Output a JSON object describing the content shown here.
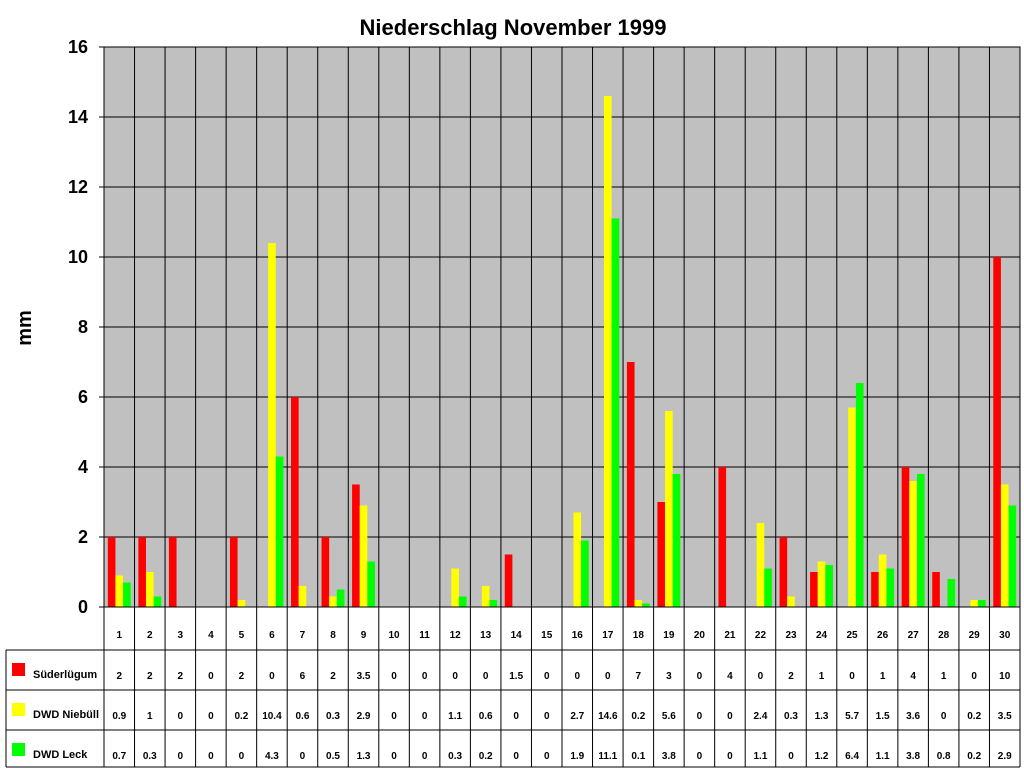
{
  "chart_data": {
    "type": "bar",
    "title": "Niederschlag November 1999",
    "ylabel": "mm",
    "xlabel": "",
    "ylim": [
      0,
      16
    ],
    "yticks": [
      "0",
      "2",
      "4",
      "6",
      "8",
      "10",
      "12",
      "14",
      "16"
    ],
    "grid": true,
    "legend_placement": "data-table-left",
    "categories": [
      "1",
      "2",
      "3",
      "4",
      "5",
      "6",
      "7",
      "8",
      "9",
      "10",
      "11",
      "12",
      "13",
      "14",
      "15",
      "16",
      "17",
      "18",
      "19",
      "20",
      "21",
      "22",
      "23",
      "24",
      "25",
      "26",
      "27",
      "28",
      "29",
      "30"
    ],
    "series": [
      {
        "name": "Süderlügum",
        "color": "#ff0000",
        "values": [
          2,
          2,
          2,
          0,
          2,
          0,
          6,
          2,
          3.5,
          0,
          0,
          0,
          0,
          1.5,
          0,
          0,
          0,
          7,
          3,
          0,
          4,
          0,
          2,
          1,
          0,
          1,
          4,
          1,
          0,
          10
        ]
      },
      {
        "name": "DWD Niebüll",
        "color": "#ffff00",
        "values": [
          0.9,
          1,
          0,
          0,
          0.2,
          10.4,
          0.6,
          0.3,
          2.9,
          0,
          0,
          1.1,
          0.6,
          0,
          0,
          2.7,
          14.6,
          0.2,
          5.6,
          0,
          0,
          2.4,
          0.3,
          1.3,
          5.7,
          1.5,
          3.6,
          0,
          0.2,
          3.5
        ]
      },
      {
        "name": "DWD Leck",
        "color": "#00ff00",
        "values": [
          0.7,
          0.3,
          0,
          0,
          0,
          4.3,
          0,
          0.5,
          1.3,
          0,
          0,
          0.3,
          0.2,
          0,
          0,
          1.9,
          11.1,
          0.1,
          3.8,
          0,
          0,
          1.1,
          0,
          1.2,
          6.4,
          1.1,
          3.8,
          0.8,
          0.2,
          2.9
        ]
      }
    ],
    "plot_background": "#c0c0c0"
  }
}
